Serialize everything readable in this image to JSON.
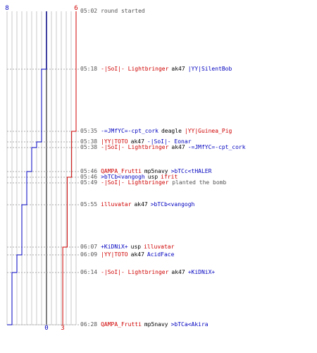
{
  "scoreboard": {
    "team_b_start": "8",
    "team_a_start": "6",
    "team_b_end": "0",
    "team_a_end": "3"
  },
  "colors": {
    "team_a": "#d00000",
    "team_b": "#0000c0",
    "grid": "#c8c8c8",
    "center": "#808080",
    "dash": "#aaaaaa"
  },
  "events": [
    {
      "time": "05:02",
      "type": "msg",
      "text": "round started"
    },
    {
      "time": "05:18",
      "type": "kill",
      "killer": "-|SoI|- Lightbringer",
      "killer_team": "a",
      "weapon": "ak47",
      "victim": "|YY|SilentBob",
      "victim_team": "b"
    },
    {
      "time": "05:35",
      "type": "kill",
      "killer": "-=JMfYC=-cpt_cork",
      "killer_team": "b",
      "weapon": "deagle",
      "victim": "|YY|Guinea_Pig",
      "victim_team": "a"
    },
    {
      "time": "05:38",
      "type": "kill",
      "killer": "|YY|TOTO",
      "killer_team": "a",
      "weapon": "ak47",
      "victim": "-|SoI|- Eonar",
      "victim_team": "b"
    },
    {
      "time": "05:38",
      "type": "kill",
      "killer": "-|SoI|- Lightbringer",
      "killer_team": "a",
      "weapon": "ak47",
      "victim": "-=JMfYC=-cpt_cork",
      "victim_team": "b"
    },
    {
      "time": "05:46",
      "type": "kill",
      "killer": "QAMPA_Frutti",
      "killer_team": "a",
      "weapon": "mp5navy",
      "victim": ">bTCc<tHALER",
      "victim_team": "b"
    },
    {
      "time": "05:46",
      "type": "kill",
      "killer": ">bTCb<vangogh",
      "killer_team": "b",
      "weapon": "usp",
      "victim": "ifrit",
      "victim_team": "a"
    },
    {
      "time": "05:49",
      "type": "plant",
      "player": "-|SoI|- Lightbringer",
      "player_team": "a",
      "text": "planted the bomb"
    },
    {
      "time": "05:55",
      "type": "kill",
      "killer": "illuvatar",
      "killer_team": "a",
      "weapon": "ak47",
      "victim": ">bTCb<vangogh",
      "victim_team": "b"
    },
    {
      "time": "06:07",
      "type": "kill",
      "killer": "+KiDNiX+",
      "killer_team": "b",
      "weapon": "usp",
      "victim": "illuvatar",
      "victim_team": "a"
    },
    {
      "time": "06:09",
      "type": "kill",
      "killer": "|YY|TOTO",
      "killer_team": "a",
      "weapon": "ak47",
      "victim": "AcidFace",
      "victim_team": "b"
    },
    {
      "time": "06:14",
      "type": "kill",
      "killer": "-|SoI|- Lightbringer",
      "killer_team": "a",
      "weapon": "ak47",
      "victim": "+KiDNiX+",
      "victim_team": "b"
    },
    {
      "time": "06:28",
      "type": "kill",
      "killer": "QAMPA_Frutti",
      "killer_team": "a",
      "weapon": "mp5navy",
      "victim": ">bTCa<Akira",
      "victim_team": "b"
    }
  ],
  "team_b_alive": [
    8,
    7,
    7,
    6,
    5,
    4,
    4,
    4,
    3,
    3,
    2,
    1,
    0
  ],
  "team_a_alive": [
    6,
    6,
    5,
    5,
    5,
    5,
    4,
    4,
    4,
    3,
    3,
    3,
    3
  ]
}
